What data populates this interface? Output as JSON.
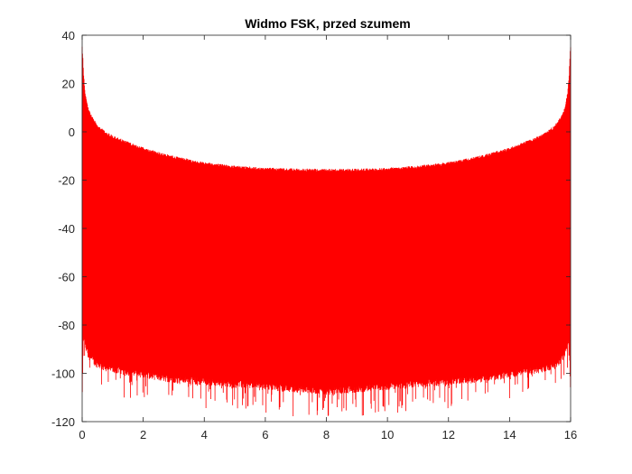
{
  "chart_data": {
    "type": "line",
    "title": "Widmo FSK, przed szumem",
    "xlabel": "",
    "ylabel": "",
    "xlim": [
      0,
      16
    ],
    "ylim": [
      -120,
      40
    ],
    "x_ticks": [
      0,
      2,
      4,
      6,
      8,
      10,
      12,
      14,
      16
    ],
    "y_ticks": [
      40,
      20,
      0,
      -20,
      -40,
      -60,
      -80,
      -100,
      -120
    ],
    "grid": false,
    "legend": "none",
    "series_color": "#ff0000",
    "series": [
      {
        "style": "dense oscillating spectrum line",
        "upper_envelope": {
          "x": [
            0.0,
            0.02,
            0.05,
            0.1,
            0.2,
            0.3,
            0.5,
            0.8,
            1.0,
            1.5,
            2.0,
            3.0,
            4.0,
            5.0,
            6.0,
            7.0,
            8.0,
            9.0,
            10.0,
            11.0,
            12.0,
            13.0,
            14.0,
            14.5,
            15.0,
            15.2,
            15.5,
            15.7,
            15.8,
            15.9,
            15.95,
            15.98,
            16.0
          ],
          "y": [
            36,
            32,
            24,
            16,
            10,
            7,
            3,
            0,
            -1.5,
            -4,
            -6.5,
            -10,
            -12.5,
            -14,
            -14.8,
            -15.2,
            -15.3,
            -15.2,
            -14.8,
            -14,
            -12.5,
            -10,
            -6.5,
            -4,
            -1.5,
            0,
            3,
            7,
            10,
            16,
            24,
            32,
            36
          ]
        },
        "lower_envelope": {
          "x": [
            0.0,
            0.05,
            0.1,
            0.2,
            0.4,
            0.7,
            1.0,
            2.0,
            3.0,
            4.0,
            5.0,
            6.0,
            7.0,
            8.0,
            9.0,
            10.0,
            11.0,
            12.0,
            13.0,
            14.0,
            15.0,
            15.3,
            15.6,
            15.8,
            15.9,
            15.95,
            16.0
          ],
          "y": [
            -112,
            -85,
            -90,
            -94,
            -97,
            -99,
            -100,
            -102,
            -104,
            -105,
            -106,
            -107,
            -108,
            -109,
            -108,
            -107,
            -106,
            -105,
            -104,
            -102,
            -100,
            -99,
            -97,
            -94,
            -90,
            -85,
            -112
          ]
        }
      }
    ]
  }
}
